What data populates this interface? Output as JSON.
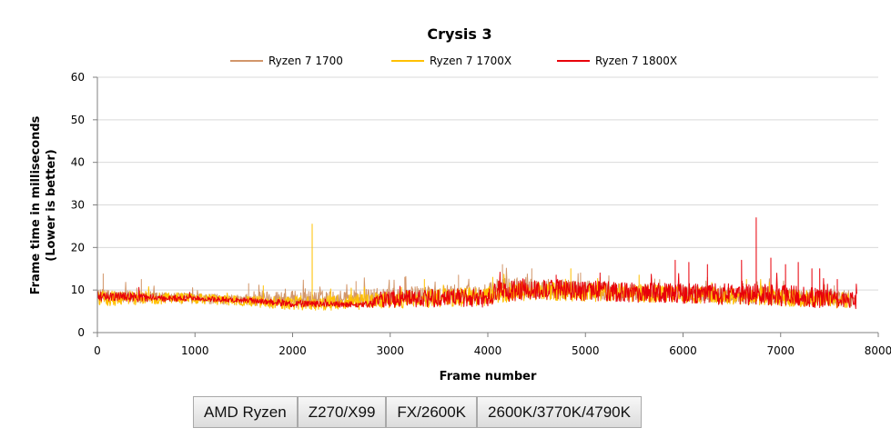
{
  "chart_data": {
    "type": "line",
    "title": "Crysis 3",
    "xlabel": "Frame number",
    "ylabel": [
      "Frame time in milliseconds",
      "(Lower is better)"
    ],
    "xlim": [
      0,
      8000
    ],
    "ylim": [
      0,
      60
    ],
    "x_ticks": [
      "0",
      "1000",
      "2000",
      "3000",
      "4000",
      "5000",
      "6000",
      "7000",
      "8000"
    ],
    "y_ticks": [
      "0",
      "10",
      "20",
      "30",
      "40",
      "50",
      "60"
    ],
    "grid": "horizontal",
    "legend_position": "top",
    "series": [
      {
        "name": "Ryzen 7 1700",
        "color": "#d2966a",
        "frames": 7750,
        "x": [
          0,
          500,
          1000,
          1500,
          1600,
          2000,
          2500,
          3000,
          3500,
          4000,
          4100,
          4500,
          5000,
          5500,
          6000,
          6500,
          7000,
          7500,
          7750
        ],
        "y": [
          8.6,
          8.3,
          8.0,
          7.6,
          8.0,
          7.8,
          7.9,
          8.4,
          8.9,
          9.0,
          10.5,
          10.5,
          10.0,
          9.5,
          9.5,
          8.8,
          8.6,
          8.3,
          8.0
        ],
        "noise": [
          1.6,
          1.4,
          1.2,
          1.2,
          2.0,
          2.0,
          2.0,
          2.2,
          2.3,
          2.3,
          2.5,
          2.5,
          2.2,
          2.0,
          2.0,
          2.0,
          2.0,
          2.0,
          2.0
        ],
        "spikes": [
          [
            60,
            13.8
          ],
          [
            450,
            12.5
          ],
          [
            1550,
            11.5
          ],
          [
            2650,
            12.0
          ],
          [
            3150,
            13.0
          ],
          [
            3700,
            13.5
          ],
          [
            4150,
            16.0
          ],
          [
            4450,
            15.0
          ],
          [
            4950,
            14.0
          ],
          [
            5150,
            13.0
          ],
          [
            6250,
            13.0
          ],
          [
            7550,
            11.0
          ]
        ]
      },
      {
        "name": "Ryzen 7 1700X",
        "color": "#ffc000",
        "frames": 7700,
        "x": [
          0,
          500,
          1000,
          1500,
          2000,
          2500,
          3000,
          3500,
          4000,
          4100,
          4500,
          5000,
          5500,
          6000,
          6500,
          7000,
          7500,
          7700
        ],
        "y": [
          8.0,
          8.2,
          8.0,
          7.4,
          6.9,
          7.0,
          7.6,
          8.1,
          8.5,
          9.4,
          9.8,
          9.6,
          9.3,
          9.0,
          8.6,
          8.2,
          7.8,
          7.5
        ],
        "noise": [
          1.8,
          1.6,
          1.2,
          1.2,
          1.6,
          1.8,
          2.0,
          2.2,
          2.2,
          2.4,
          2.4,
          2.3,
          2.1,
          2.0,
          2.0,
          2.0,
          2.0,
          2.0
        ],
        "spikes": [
          [
            2200,
            25.5
          ],
          [
            1700,
            11.0
          ],
          [
            3350,
            12.5
          ],
          [
            4050,
            13.0
          ],
          [
            4850,
            15.0
          ],
          [
            5550,
            13.5
          ],
          [
            6650,
            12.5
          ]
        ]
      },
      {
        "name": "Ryzen 7 1800X",
        "color": "#e8000a",
        "frames": 7780,
        "x": [
          0,
          500,
          1000,
          1500,
          2000,
          2500,
          2800,
          2900,
          3500,
          4000,
          4100,
          4500,
          5000,
          5500,
          6000,
          6500,
          7000,
          7500,
          7780
        ],
        "y": [
          8.5,
          8.2,
          8.0,
          7.6,
          6.8,
          6.6,
          6.6,
          7.8,
          8.2,
          8.0,
          9.6,
          10.2,
          9.9,
          9.4,
          9.2,
          9.0,
          8.8,
          8.0,
          7.5
        ],
        "noise": [
          1.2,
          1.0,
          0.6,
          0.6,
          0.8,
          0.7,
          0.8,
          2.0,
          2.2,
          2.3,
          2.5,
          2.5,
          2.4,
          2.3,
          2.4,
          2.5,
          2.6,
          2.3,
          2.0
        ],
        "spikes": [
          [
            6750,
            27.0
          ],
          [
            5920,
            17.0
          ],
          [
            6060,
            16.5
          ],
          [
            6250,
            16.0
          ],
          [
            6600,
            17.0
          ],
          [
            6900,
            17.5
          ],
          [
            7050,
            16.0
          ],
          [
            7180,
            16.5
          ],
          [
            7320,
            15.0
          ],
          [
            7400,
            15.0
          ],
          [
            7580,
            12.5
          ],
          [
            4700,
            13.5
          ],
          [
            5150,
            14.0
          ]
        ]
      }
    ]
  },
  "buttons": [
    {
      "label": "AMD Ryzen"
    },
    {
      "label": "Z270/X99"
    },
    {
      "label": "FX/2600K"
    },
    {
      "label": "2600K/3770K/4790K"
    }
  ]
}
